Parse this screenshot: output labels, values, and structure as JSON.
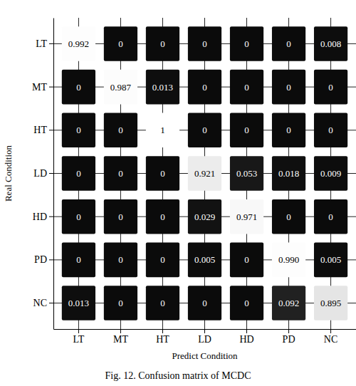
{
  "chart_data": {
    "type": "heatmap",
    "title": "Fig. 12. Confusion matrix of MCDC",
    "x_label": "Predict Condition",
    "y_label": "Real Condition",
    "x_categories": [
      "LT",
      "MT",
      "HT",
      "LD",
      "HD",
      "PD",
      "NC"
    ],
    "y_categories": [
      "LT",
      "MT",
      "HT",
      "LD",
      "HD",
      "PD",
      "NC"
    ],
    "values": [
      [
        0.992,
        0,
        0,
        0,
        0,
        0,
        0.008
      ],
      [
        0,
        0.987,
        0.013,
        0,
        0,
        0,
        0
      ],
      [
        0,
        0,
        1,
        0,
        0,
        0,
        0
      ],
      [
        0,
        0,
        0,
        0.921,
        0.053,
        0.018,
        0.009
      ],
      [
        0,
        0,
        0,
        0.029,
        0.971,
        0,
        0
      ],
      [
        0,
        0,
        0,
        0.005,
        0,
        0.99,
        0.005
      ],
      [
        0.013,
        0,
        0,
        0,
        0,
        0.092,
        0.895
      ]
    ],
    "value_labels": [
      [
        "0.992",
        "0",
        "0",
        "0",
        "0",
        "0",
        "0.008"
      ],
      [
        "0",
        "0.987",
        "0.013",
        "0",
        "0",
        "0",
        "0"
      ],
      [
        "0",
        "0",
        "1",
        "0",
        "0",
        "0",
        "0"
      ],
      [
        "0",
        "0",
        "0",
        "0.921",
        "0.053",
        "0.018",
        "0.009"
      ],
      [
        "0",
        "0",
        "0",
        "0.029",
        "0.971",
        "0",
        "0"
      ],
      [
        "0",
        "0",
        "0",
        "0.005",
        "0",
        "0.990",
        "0.005"
      ],
      [
        "0.013",
        "0",
        "0",
        "0",
        "0",
        "0.092",
        "0.895"
      ]
    ],
    "data_labels": true,
    "grid": true
  }
}
